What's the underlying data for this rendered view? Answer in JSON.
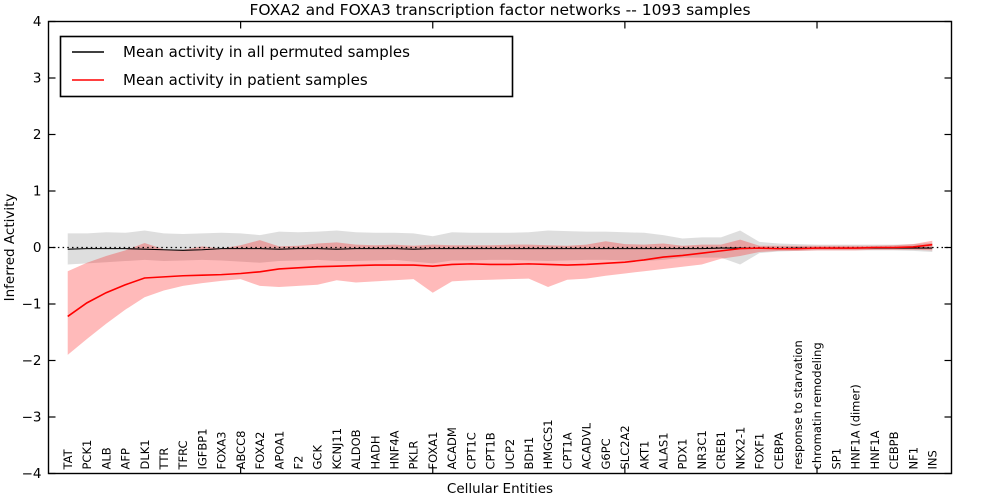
{
  "title": "FOXA2 and FOXA3 transcription factor networks -- 1093 samples",
  "axes": {
    "xlabel": "Cellular Entities",
    "ylabel": "Inferred Activity",
    "y_ticks": [
      4,
      3,
      2,
      1,
      0,
      -1,
      -2,
      -3,
      -4
    ],
    "ylim": [
      -4,
      4
    ],
    "x_major_tick_positions": [
      10,
      20,
      30,
      40
    ],
    "zero_reference_line": 0
  },
  "legend": {
    "entries": [
      {
        "label": "Mean activity in all permuted samples",
        "color": "#000000"
      },
      {
        "label": "Mean activity in patient samples",
        "color": "#ff0000"
      }
    ]
  },
  "colors": {
    "permuted_line": "#000000",
    "patient_line": "#ff0000",
    "permuted_band": "rgba(0,0,0,0.13)",
    "patient_band": "rgba(255,0,0,0.27)",
    "axis": "#000000",
    "background": "#ffffff"
  },
  "chart_data": {
    "type": "line",
    "title": "FOXA2 and FOXA3 transcription factor networks -- 1093 samples",
    "xlabel": "Cellular Entities",
    "ylabel": "Inferred Activity",
    "ylim": [
      -4,
      4
    ],
    "grid": false,
    "legend_position": "upper-left",
    "categories": [
      "TAT",
      "PCK1",
      "ALB",
      "AFP",
      "DLK1",
      "TTR",
      "TFRC",
      "IGFBP1",
      "FOXA3",
      "ABCC8",
      "FOXA2",
      "APOA1",
      "F2",
      "GCK",
      "KCNJ11",
      "ALDOB",
      "HADH",
      "HNF4A",
      "PKLR",
      "FOXA1",
      "ACADM",
      "CPT1C",
      "CPT1B",
      "UCP2",
      "BDH1",
      "HMGCS1",
      "CPT1A",
      "ACADVL",
      "G6PC",
      "SLC2A2",
      "AKT1",
      "ALAS1",
      "PDX1",
      "NR3C1",
      "CREB1",
      "NKX2-1",
      "FOXF1",
      "CEBPA",
      "response to starvation",
      "chromatin remodeling",
      "SP1",
      "HNF1A (dimer)",
      "HNF1A",
      "CEBPB",
      "NF1",
      "INS"
    ],
    "series": [
      {
        "name": "Mean activity in all permuted samples",
        "color": "#000000",
        "values": [
          -0.03,
          -0.02,
          -0.02,
          -0.02,
          -0.03,
          -0.04,
          -0.05,
          -0.04,
          -0.02,
          -0.02,
          -0.02,
          -0.03,
          -0.02,
          -0.02,
          -0.03,
          -0.02,
          -0.02,
          -0.02,
          -0.03,
          -0.02,
          -0.02,
          -0.02,
          -0.02,
          -0.02,
          -0.02,
          -0.02,
          -0.02,
          -0.02,
          -0.02,
          -0.02,
          -0.02,
          -0.02,
          -0.02,
          -0.02,
          -0.01,
          -0.01,
          -0.01,
          -0.02,
          -0.01,
          -0.01,
          -0.01,
          -0.01,
          -0.01,
          -0.01,
          -0.01,
          -0.01
        ]
      },
      {
        "name": "Mean activity in patient samples",
        "color": "#ff0000",
        "values": [
          -1.22,
          -0.98,
          -0.8,
          -0.66,
          -0.54,
          -0.52,
          -0.5,
          -0.49,
          -0.48,
          -0.46,
          -0.43,
          -0.38,
          -0.36,
          -0.34,
          -0.33,
          -0.32,
          -0.31,
          -0.31,
          -0.31,
          -0.33,
          -0.3,
          -0.29,
          -0.3,
          -0.3,
          -0.29,
          -0.3,
          -0.31,
          -0.3,
          -0.28,
          -0.26,
          -0.22,
          -0.17,
          -0.14,
          -0.1,
          -0.06,
          -0.02,
          -0.01,
          -0.02,
          -0.02,
          -0.01,
          -0.01,
          -0.01,
          0.0,
          0.0,
          0.01,
          0.05
        ]
      }
    ],
    "bands": [
      {
        "name": "permuted samples range",
        "fill": "rgba(0,0,0,0.13)",
        "upper": [
          0.25,
          0.25,
          0.27,
          0.26,
          0.3,
          0.25,
          0.24,
          0.25,
          0.26,
          0.25,
          0.22,
          0.28,
          0.27,
          0.28,
          0.3,
          0.27,
          0.26,
          0.26,
          0.25,
          0.2,
          0.27,
          0.26,
          0.26,
          0.26,
          0.27,
          0.3,
          0.29,
          0.28,
          0.28,
          0.27,
          0.26,
          0.22,
          0.16,
          0.18,
          0.18,
          0.3,
          0.1,
          0.07,
          0.06,
          0.05,
          0.05,
          0.05,
          0.05,
          0.05,
          0.06,
          0.08
        ],
        "lower": [
          -0.3,
          -0.28,
          -0.26,
          -0.24,
          -0.22,
          -0.24,
          -0.23,
          -0.22,
          -0.23,
          -0.25,
          -0.27,
          -0.24,
          -0.23,
          -0.22,
          -0.24,
          -0.24,
          -0.23,
          -0.22,
          -0.25,
          -0.28,
          -0.23,
          -0.23,
          -0.22,
          -0.22,
          -0.23,
          -0.24,
          -0.23,
          -0.22,
          -0.22,
          -0.23,
          -0.24,
          -0.22,
          -0.18,
          -0.18,
          -0.18,
          -0.3,
          -0.1,
          -0.07,
          -0.06,
          -0.05,
          -0.05,
          -0.05,
          -0.05,
          -0.05,
          -0.06,
          -0.08
        ]
      },
      {
        "name": "patient samples range",
        "fill": "rgba(255,0,0,0.27)",
        "upper": [
          -0.42,
          -0.27,
          -0.15,
          -0.05,
          0.08,
          -0.03,
          -0.04,
          0.02,
          -0.02,
          0.04,
          0.13,
          0.02,
          0.03,
          0.07,
          0.09,
          0.05,
          0.04,
          0.05,
          0.03,
          0.05,
          0.04,
          0.04,
          0.04,
          0.05,
          0.05,
          0.04,
          0.03,
          0.05,
          0.11,
          0.06,
          0.05,
          0.07,
          0.03,
          0.05,
          0.05,
          0.14,
          0.03,
          0.03,
          0.03,
          0.03,
          0.03,
          0.03,
          0.03,
          0.04,
          0.06,
          0.12
        ],
        "lower": [
          -1.9,
          -1.62,
          -1.35,
          -1.1,
          -0.88,
          -0.76,
          -0.68,
          -0.63,
          -0.59,
          -0.56,
          -0.68,
          -0.7,
          -0.68,
          -0.66,
          -0.58,
          -0.62,
          -0.6,
          -0.58,
          -0.56,
          -0.8,
          -0.6,
          -0.58,
          -0.57,
          -0.56,
          -0.55,
          -0.7,
          -0.57,
          -0.55,
          -0.5,
          -0.46,
          -0.42,
          -0.38,
          -0.34,
          -0.3,
          -0.2,
          -0.15,
          -0.08,
          -0.06,
          -0.06,
          -0.05,
          -0.05,
          -0.05,
          -0.04,
          -0.04,
          -0.04,
          -0.05
        ]
      }
    ]
  }
}
